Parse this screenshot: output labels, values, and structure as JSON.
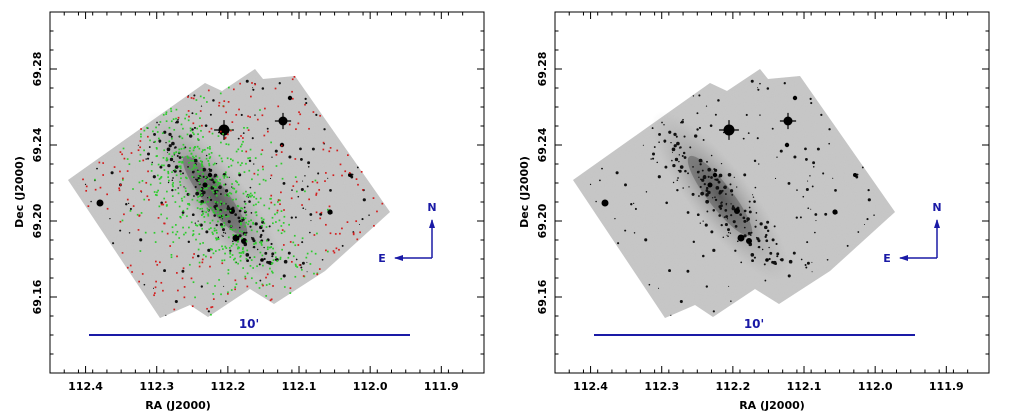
{
  "figure": {
    "panels": [
      {
        "id": "left",
        "has_markers": true,
        "xlabel": "RA (J2000)",
        "ylabel": "Dec (J2000)",
        "x_ticks": [
          "112.4",
          "112.3",
          "112.2",
          "112.1",
          "112.0",
          "111.9"
        ],
        "y_ticks": [
          "69.16",
          "69.20",
          "69.24",
          "69.28"
        ],
        "compass": {
          "north": "N",
          "east": "E"
        },
        "scale_bar": {
          "label": "10'"
        }
      },
      {
        "id": "right",
        "has_markers": false,
        "xlabel": "RA (J2000)",
        "ylabel": "Dec (J2000)",
        "x_ticks": [
          "112.4",
          "112.3",
          "112.2",
          "112.1",
          "112.0",
          "111.9"
        ],
        "y_ticks": [
          "69.16",
          "69.20",
          "69.24",
          "69.28"
        ],
        "compass": {
          "north": "N",
          "east": "E"
        },
        "scale_bar": {
          "label": "10'"
        }
      }
    ],
    "colors": {
      "frame": "#000000",
      "image_bg": "#c8c8c8",
      "annotation_blue": "#1a1aa6",
      "marker_red": "#d21e1e",
      "marker_green": "#2ecc2e"
    }
  },
  "chart_data": [
    {
      "type": "scatter",
      "title": "",
      "xlabel": "RA (J2000)",
      "ylabel": "Dec (J2000)",
      "xlim": [
        112.45,
        111.84
      ],
      "ylim": [
        69.12,
        69.31
      ],
      "x_ticks": [
        112.4,
        112.3,
        112.2,
        112.1,
        112.0,
        111.9
      ],
      "y_ticks": [
        69.16,
        69.2,
        69.24,
        69.28
      ],
      "series": [
        {
          "name": "red sources",
          "color": "#d21e1e",
          "distribution": "outer disk"
        },
        {
          "name": "green sources",
          "color": "#2ecc2e",
          "distribution": "inner disk"
        }
      ],
      "annotations": [
        "N",
        "E",
        "10'"
      ]
    },
    {
      "type": "heatmap",
      "title": "",
      "xlabel": "RA (J2000)",
      "ylabel": "Dec (J2000)",
      "xlim": [
        112.45,
        111.84
      ],
      "ylim": [
        69.12,
        69.31
      ],
      "x_ticks": [
        112.4,
        112.3,
        112.2,
        112.1,
        112.0,
        111.9
      ],
      "y_ticks": [
        69.16,
        69.2,
        69.24,
        69.28
      ],
      "annotations": [
        "N",
        "E",
        "10'"
      ]
    }
  ]
}
